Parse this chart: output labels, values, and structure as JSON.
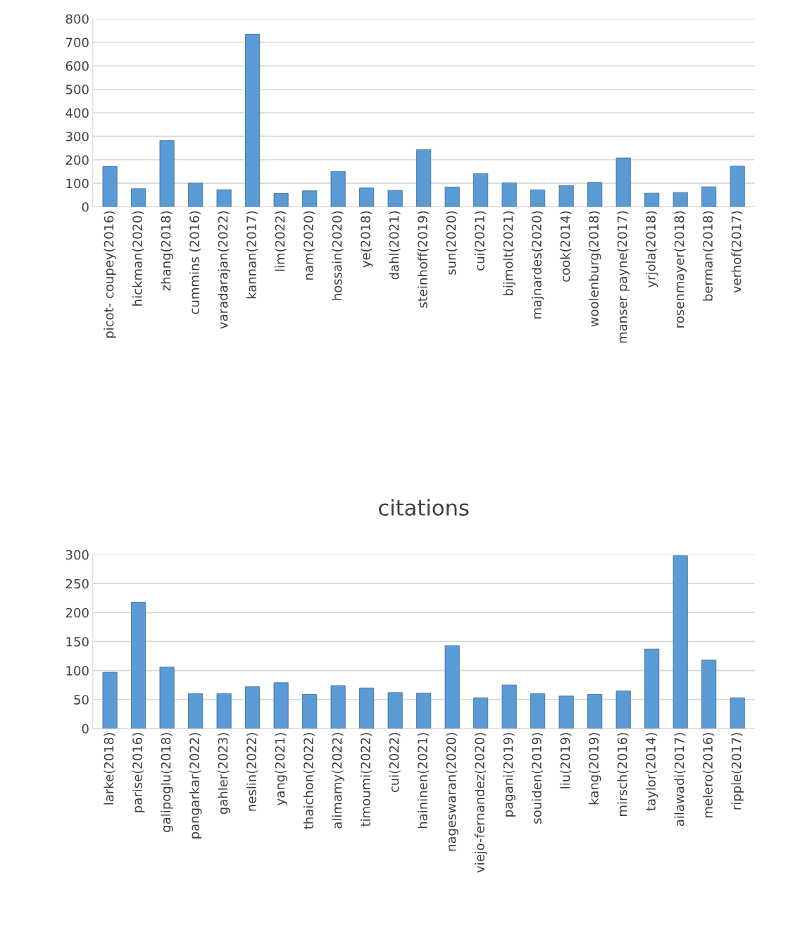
{
  "chart_data": [
    {
      "type": "bar",
      "categories": [
        "picot- coupey(2016)",
        "hickman(2020)",
        "zhang(2018)",
        "cummins (2016)",
        "varadarajan(2022)",
        "kannan(2017)",
        "lim(2022)",
        "nam(2020)",
        "hossain(2020)",
        "ye(2018)",
        "dahl(2021)",
        "steinhoff(2019)",
        "sun(2020)",
        "cui(2021)",
        "bijmolt(2021)",
        "majnardes(2020)",
        "cook(2014)",
        "woolenburg(2018)",
        "manser payne(2017)",
        "yrjola(2018)",
        "rosenmayer(2018)",
        "berman(2018)",
        "verhof(2017)"
      ],
      "values": [
        172,
        77,
        282,
        101,
        73,
        735,
        57,
        68,
        150,
        80,
        70,
        243,
        84,
        141,
        102,
        72,
        91,
        104,
        208,
        58,
        61,
        85,
        173
      ],
      "color": "#5b9bd5",
      "ylim": [
        0,
        800
      ],
      "yticks": [
        0,
        100,
        200,
        300,
        400,
        500,
        600,
        700,
        800
      ],
      "grid": "y",
      "legend": false
    },
    {
      "type": "bar",
      "title": "citations",
      "categories": [
        "larke(2018)",
        "parise(2016)",
        "galipoglu(2018)",
        "pangarkar(2022)",
        "gahler(2023)",
        "neslin(2022)",
        "yang(2021)",
        "thaichon(2022)",
        "alimamy(2022)",
        "timoumi(2022)",
        "cui(2022)",
        "haininen(2021)",
        "nageswaran(2020)",
        "viejo-fernandez(2020)",
        "pagani(2019)",
        "souiden(2019)",
        "liu(2019)",
        "kang(2019)",
        "mirsch(2016)",
        "taylor(2014)",
        "ailawadi(2017)",
        "melero(2016)",
        "ripple(2017)"
      ],
      "values": [
        97,
        218,
        106,
        60,
        60,
        72,
        79,
        59,
        74,
        70,
        62,
        61,
        143,
        53,
        75,
        60,
        56,
        59,
        65,
        137,
        298,
        118,
        53
      ],
      "color": "#5b9bd5",
      "ylim": [
        0,
        300
      ],
      "yticks": [
        0,
        50,
        100,
        150,
        200,
        250,
        300
      ],
      "grid": "y",
      "legend": false
    }
  ]
}
